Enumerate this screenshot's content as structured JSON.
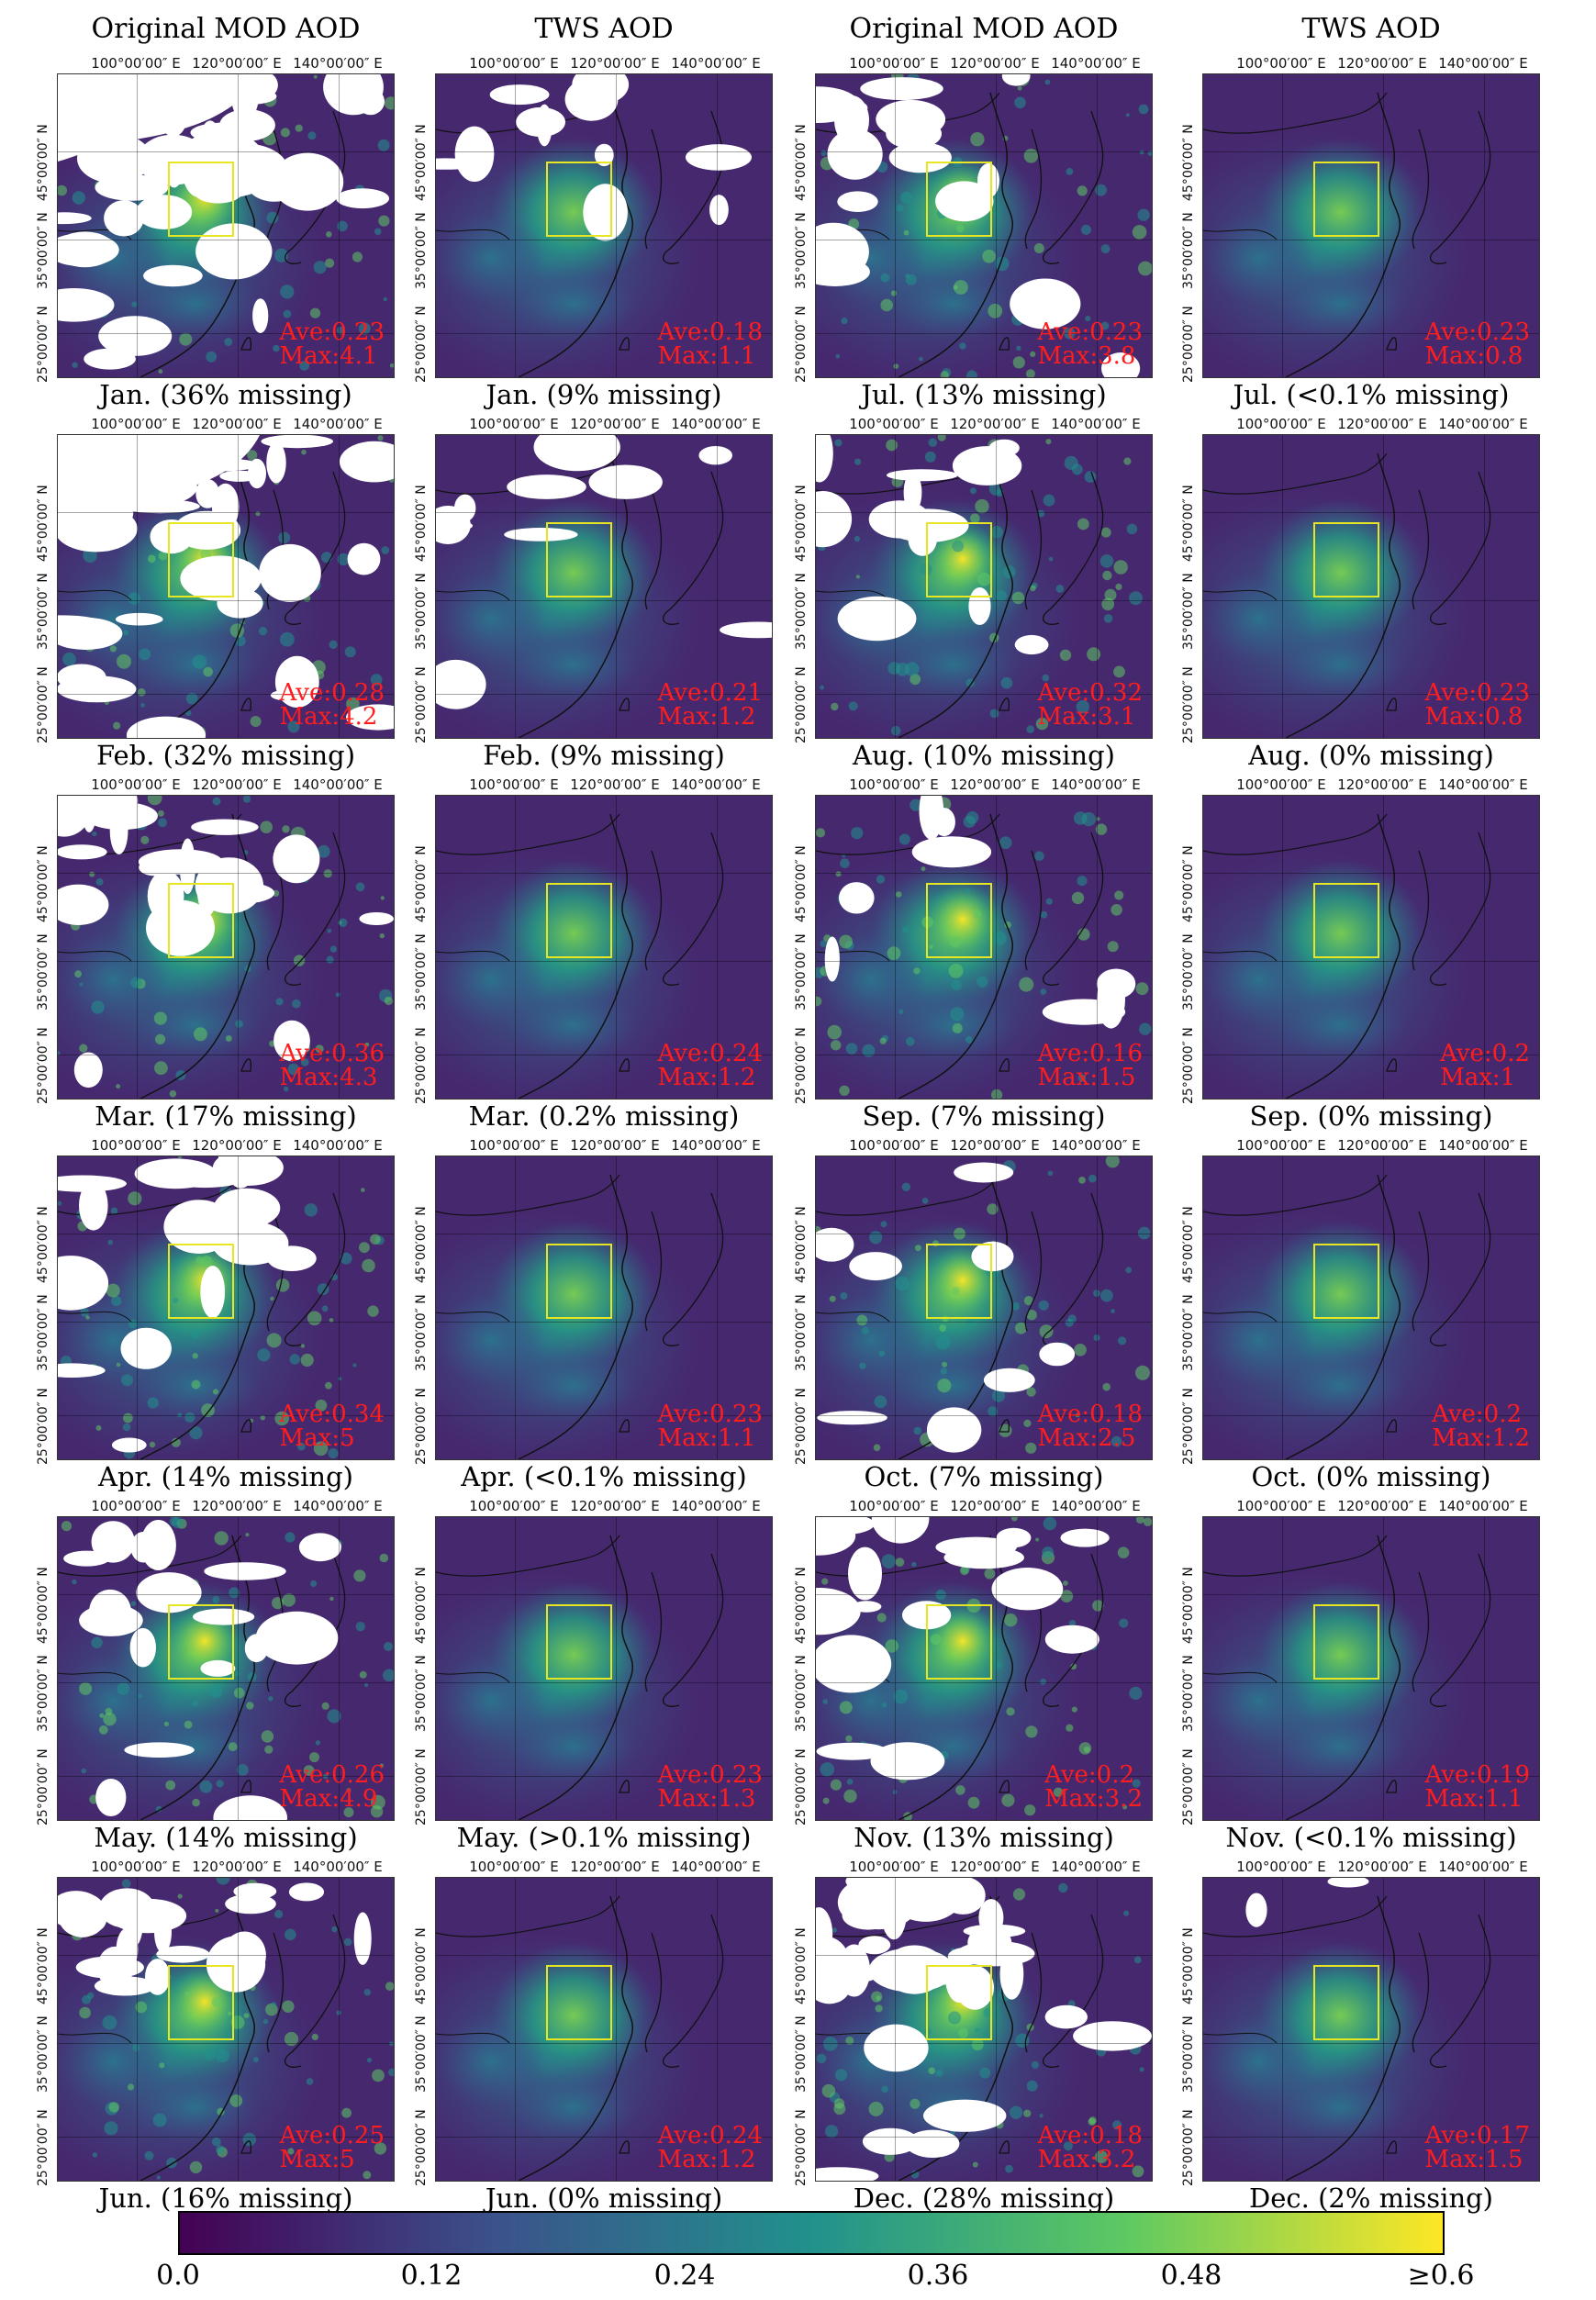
{
  "column_titles": [
    "Original MOD AOD",
    "TWS AOD",
    "Original MOD AOD",
    "TWS AOD"
  ],
  "lon_labels": [
    "100°00′00″ E",
    "120°00′00″ E",
    "140°00′00″ E"
  ],
  "lat_labels": [
    "45°00′00″ N",
    "35°00′00″ N",
    "25°00′00″ N"
  ],
  "panels": [
    {
      "caption": "Jan. (36% missing)",
      "ave": "Ave:0.23",
      "max": "Max:4.1",
      "type": "mod",
      "missing": 0.36
    },
    {
      "caption": "Jan. (9% missing)",
      "ave": "Ave:0.18",
      "max": "Max:1.1",
      "type": "tws",
      "missing": 0.09
    },
    {
      "caption": "Jul. (13% missing)",
      "ave": "Ave:0.23",
      "max": "Max:3.8",
      "type": "mod",
      "missing": 0.13
    },
    {
      "caption": "Jul. (<0.1% missing)",
      "ave": "Ave:0.23",
      "max": "Max:0.8",
      "type": "tws",
      "missing": 0.0
    },
    {
      "caption": "Feb. (32% missing)",
      "ave": "Ave:0.28",
      "max": "Max:4.2",
      "type": "mod",
      "missing": 0.32
    },
    {
      "caption": "Feb. (9% missing)",
      "ave": "Ave:0.21",
      "max": "Max:1.2",
      "type": "tws",
      "missing": 0.09
    },
    {
      "caption": "Aug. (10% missing)",
      "ave": "Ave:0.32",
      "max": "Max:3.1",
      "type": "mod",
      "missing": 0.1
    },
    {
      "caption": "Aug. (0% missing)",
      "ave": "Ave:0.23",
      "max": "Max:0.8",
      "type": "tws",
      "missing": 0.0
    },
    {
      "caption": "Mar. (17% missing)",
      "ave": "Ave:0.36",
      "max": "Max:4.3",
      "type": "mod",
      "missing": 0.17
    },
    {
      "caption": "Mar. (0.2% missing)",
      "ave": "Ave:0.24",
      "max": "Max:1.2",
      "type": "tws",
      "missing": 0.002
    },
    {
      "caption": "Sep. (7% missing)",
      "ave": "Ave:0.16",
      "max": "Max:1.5",
      "type": "mod",
      "missing": 0.07
    },
    {
      "caption": "Sep. (0% missing)",
      "ave": "Ave:0.2",
      "max": "Max:1",
      "type": "tws",
      "missing": 0.0
    },
    {
      "caption": "Apr. (14% missing)",
      "ave": "Ave:0.34",
      "max": "Max:5",
      "type": "mod",
      "missing": 0.14
    },
    {
      "caption": "Apr. (<0.1% missing)",
      "ave": "Ave:0.23",
      "max": "Max:1.1",
      "type": "tws",
      "missing": 0.0
    },
    {
      "caption": "Oct. (7% missing)",
      "ave": "Ave:0.18",
      "max": "Max:2.5",
      "type": "mod",
      "missing": 0.07
    },
    {
      "caption": "Oct. (0% missing)",
      "ave": "Ave:0.2",
      "max": "Max:1.2",
      "type": "tws",
      "missing": 0.0
    },
    {
      "caption": "May. (14% missing)",
      "ave": "Ave:0.26",
      "max": "Max:4.9",
      "type": "mod",
      "missing": 0.14
    },
    {
      "caption": "May. (>0.1% missing)",
      "ave": "Ave:0.23",
      "max": "Max:1.3",
      "type": "tws",
      "missing": 0.001
    },
    {
      "caption": "Nov. (13% missing)",
      "ave": "Ave:0.2",
      "max": "Max:3.2",
      "type": "mod",
      "missing": 0.13
    },
    {
      "caption": "Nov. (<0.1% missing)",
      "ave": "Ave:0.19",
      "max": "Max:1.1",
      "type": "tws",
      "missing": 0.0
    },
    {
      "caption": "Jun. (16% missing)",
      "ave": "Ave:0.25",
      "max": "Max:5",
      "type": "mod",
      "missing": 0.16
    },
    {
      "caption": "Jun. (0% missing)",
      "ave": "Ave:0.24",
      "max": "Max:1.2",
      "type": "tws",
      "missing": 0.0
    },
    {
      "caption": "Dec. (28% missing)",
      "ave": "Ave:0.18",
      "max": "Max:3.2",
      "type": "mod",
      "missing": 0.28
    },
    {
      "caption": "Dec. (2% missing)",
      "ave": "Ave:0.17",
      "max": "Max:1.5",
      "type": "tws",
      "missing": 0.02
    }
  ],
  "colorbar": {
    "ticks": [
      "0.0",
      "0.12",
      "0.24",
      "0.36",
      "0.48",
      "≥0.6"
    ],
    "colors": [
      "#440154",
      "#3b528b",
      "#21918c",
      "#5ec962",
      "#fde725"
    ]
  }
}
